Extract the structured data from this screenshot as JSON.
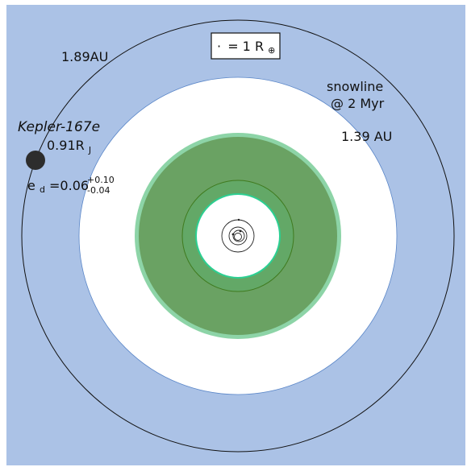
{
  "diagram": {
    "scale_legend": {
      "dot": "·",
      "text": "= 1 R",
      "symbol": "⊕"
    },
    "labels": {
      "outer_orbit": "1.89AU",
      "snowline_line1": "snowline",
      "snowline_line2": "@ 2 Myr",
      "snowline_distance": "1.39 AU"
    },
    "planet": {
      "name": "Kepler-167e",
      "radius_value": "0.91R",
      "radius_subscript": "J",
      "eccentricity_prefix": "e",
      "eccentricity_subscript": "d",
      "eccentricity_value": "=0.06",
      "eccentricity_upper": "+0.10",
      "eccentricity_lower": "-0.04"
    },
    "colors": {
      "background": "#abc2e6",
      "snowline_disk": "#ffffff",
      "habitable_outer": "#8dd4a7",
      "habitable_zone": "#6aa263",
      "inner_zone": "#63a867",
      "inner_edge": "#2ccf92",
      "planet": "#2d2d2d"
    }
  }
}
